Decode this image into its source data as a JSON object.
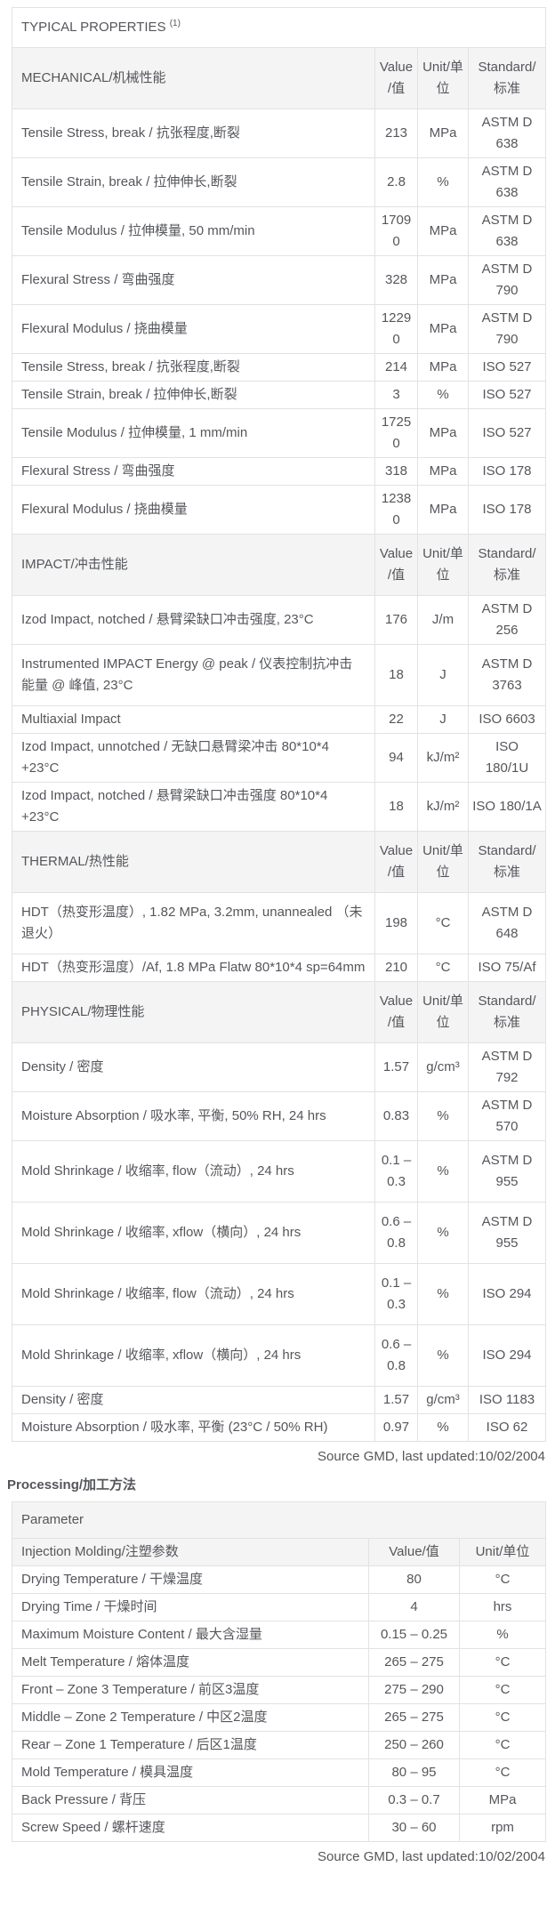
{
  "page": {
    "title": "TYPICAL PROPERTIES",
    "title_superscript": "(1)",
    "processing_heading": "Processing/加工方法",
    "source_note": "Source GMD, last updated:10/02/2004"
  },
  "colors": {
    "text": "#54565b",
    "section_header_background": "#f4f4f4",
    "inner_border": "#e2e2e2",
    "outer_border": "#45474b"
  },
  "typical_properties": {
    "column_headers": {
      "value": "Value/值",
      "unit": "Unit/单位",
      "standard": "Standard/标准"
    },
    "sections": [
      {
        "label": "MECHANICAL/机械性能",
        "rows": [
          {
            "property": "Tensile Stress, break / 抗张程度,断裂",
            "value": "213",
            "unit": "MPa",
            "standard": "ASTM D 638"
          },
          {
            "property": "Tensile Strain, break / 拉伸伸长,断裂",
            "value": "2.8",
            "unit": "%",
            "standard": "ASTM D 638"
          },
          {
            "property": "Tensile Modulus / 拉伸模量, 50 mm/min",
            "value": "17090",
            "unit": "MPa",
            "standard": "ASTM D 638"
          },
          {
            "property": "Flexural Stress / 弯曲强度",
            "value": "328",
            "unit": "MPa",
            "standard": "ASTM D 790"
          },
          {
            "property": "Flexural Modulus / 挠曲模量",
            "value": "12290",
            "unit": "MPa",
            "standard": "ASTM D 790"
          },
          {
            "property": "Tensile Stress, break / 抗张程度,断裂",
            "value": "214",
            "unit": "MPa",
            "standard": "ISO 527"
          },
          {
            "property": "Tensile Strain, break / 拉伸伸长,断裂",
            "value": "3",
            "unit": "%",
            "standard": "ISO 527"
          },
          {
            "property": "Tensile Modulus / 拉伸模量, 1 mm/min",
            "value": "17250",
            "unit": "MPa",
            "standard": "ISO 527"
          },
          {
            "property": "Flexural Stress / 弯曲强度",
            "value": "318",
            "unit": "MPa",
            "standard": "ISO 178"
          },
          {
            "property": "Flexural Modulus / 挠曲模量",
            "value": "12380",
            "unit": "MPa",
            "standard": "ISO 178"
          }
        ]
      },
      {
        "label": "IMPACT/冲击性能",
        "rows": [
          {
            "property": "Izod Impact, notched / 悬臂梁缺口冲击强度, 23°C",
            "value": "176",
            "unit": "J/m",
            "standard": "ASTM D 256"
          },
          {
            "property": "Instrumented IMPACT Energy @ peak / 仪表控制抗冲击能量 @ 峰值, 23°C",
            "value": "18",
            "unit": "J",
            "standard": "ASTM D 3763",
            "tall": true
          },
          {
            "property": "Multiaxial Impact",
            "value": "22",
            "unit": "J",
            "standard": "ISO 6603"
          },
          {
            "property": "Izod Impact, unnotched / 无缺口悬臂梁冲击 80*10*4 +23°C",
            "value": "94",
            "unit": "kJ/m²",
            "standard": "ISO 180/1U"
          },
          {
            "property": "Izod Impact, notched / 悬臂梁缺口冲击强度 80*10*4 +23°C",
            "value": "18",
            "unit": "kJ/m²",
            "standard": "ISO 180/1A"
          }
        ]
      },
      {
        "label": "THERMAL/热性能",
        "rows": [
          {
            "property": "HDT（热变形温度）, 1.82 MPa, 3.2mm, unannealed （未退火）",
            "value": "198",
            "unit": "°C",
            "standard": "ASTM D 648",
            "tall": true
          },
          {
            "property": "HDT（热变形温度）/Af, 1.8 MPa Flatw 80*10*4 sp=64mm",
            "value": "210",
            "unit": "°C",
            "standard": "ISO 75/Af"
          }
        ]
      },
      {
        "label": "PHYSICAL/物理性能",
        "rows": [
          {
            "property": "Density / 密度",
            "value": "1.57",
            "unit": "g/cm³",
            "standard": "ASTM D 792"
          },
          {
            "property": "Moisture Absorption / 吸水率, 平衡, 50% RH, 24 hrs",
            "value": "0.83",
            "unit": "%",
            "standard": "ASTM D 570"
          },
          {
            "property": "Mold Shrinkage / 收缩率, flow（流动）, 24 hrs",
            "value": "0.1 – 0.3",
            "unit": "%",
            "standard": "ASTM D 955",
            "tall": true
          },
          {
            "property": "Mold Shrinkage / 收缩率, xflow（横向）, 24 hrs",
            "value": "0.6 – 0.8",
            "unit": "%",
            "standard": "ASTM D 955",
            "tall": true
          },
          {
            "property": "Mold Shrinkage / 收缩率, flow（流动）, 24 hrs",
            "value": "0.1 – 0.3",
            "unit": "%",
            "standard": "ISO 294",
            "tall": true
          },
          {
            "property": "Mold Shrinkage / 收缩率, xflow（横向）, 24 hrs",
            "value": "0.6 – 0.8",
            "unit": "%",
            "standard": "ISO 294",
            "tall": true
          },
          {
            "property": "Density / 密度",
            "value": "1.57",
            "unit": "g/cm³",
            "standard": "ISO 1183"
          },
          {
            "property": "Moisture Absorption / 吸水率, 平衡 (23°C / 50% RH)",
            "value": "0.97",
            "unit": "%",
            "standard": "ISO 62"
          }
        ]
      }
    ]
  },
  "processing": {
    "parameter_header": "Parameter",
    "group_header": "Injection Molding/注塑参数",
    "column_headers": {
      "value": "Value/值",
      "unit": "Unit/单位"
    },
    "rows": [
      {
        "parameter": "Drying Temperature / 干燥温度",
        "value": "80",
        "unit": "°C"
      },
      {
        "parameter": "Drying Time / 干燥时间",
        "value": "4",
        "unit": "hrs"
      },
      {
        "parameter": "Maximum Moisture Content / 最大含湿量",
        "value": "0.15 – 0.25",
        "unit": "%"
      },
      {
        "parameter": "Melt Temperature / 熔体温度",
        "value": "265 – 275",
        "unit": "°C"
      },
      {
        "parameter": "Front – Zone 3 Temperature / 前区3温度",
        "value": "275 – 290",
        "unit": "°C"
      },
      {
        "parameter": "Middle – Zone 2 Temperature / 中区2温度",
        "value": "265 – 275",
        "unit": "°C"
      },
      {
        "parameter": "Rear – Zone 1 Temperature / 后区1温度",
        "value": "250 – 260",
        "unit": "°C"
      },
      {
        "parameter": "Mold Temperature / 模具温度",
        "value": "80 – 95",
        "unit": "°C"
      },
      {
        "parameter": "Back Pressure / 背压",
        "value": "0.3 – 0.7",
        "unit": "MPa"
      },
      {
        "parameter": "Screw Speed / 螺杆速度",
        "value": "30 – 60",
        "unit": "rpm"
      }
    ]
  }
}
